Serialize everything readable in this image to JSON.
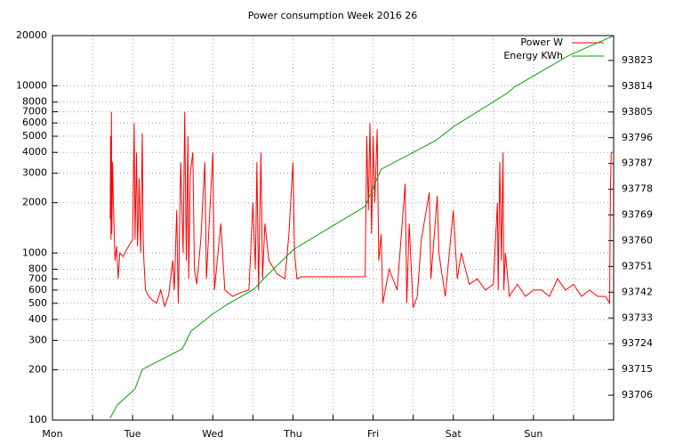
{
  "chart_data": {
    "type": "line",
    "title": "Power consumption Week 2016 26",
    "xlim": [
      0,
      7
    ],
    "xticks": [
      {
        "value": 0,
        "label": "Mon"
      },
      {
        "value": 1,
        "label": "Tue"
      },
      {
        "value": 2,
        "label": "Wed"
      },
      {
        "value": 3,
        "label": "Thu"
      },
      {
        "value": 4,
        "label": "Fri"
      },
      {
        "value": 5,
        "label": "Sat"
      },
      {
        "value": 6,
        "label": "Sun"
      }
    ],
    "xminorticks": [
      0.5,
      1.5,
      2.5,
      3.5,
      4.5,
      5.5,
      6.5
    ],
    "ylim": [
      100,
      20000
    ],
    "ylog": true,
    "yticks": [
      100,
      200,
      300,
      400,
      500,
      600,
      700,
      800,
      1000,
      2000,
      3000,
      4000,
      5000,
      6000,
      7000,
      8000,
      10000,
      20000
    ],
    "y2lim": [
      93697.3,
      93831.7
    ],
    "y2ticks": [
      93706,
      93715,
      93724,
      93733,
      93742,
      93751,
      93760,
      93769,
      93778,
      93787,
      93796,
      93805,
      93814,
      93823
    ],
    "grid": true,
    "legend": "top-right",
    "series": [
      {
        "name": "Power W",
        "color": "#ff0000",
        "x": [
          0.72,
          0.725,
          0.73,
          0.735,
          0.74,
          0.75,
          0.76,
          0.78,
          0.8,
          0.82,
          0.84,
          0.88,
          0.95,
          1.0,
          1.02,
          1.03,
          1.05,
          1.06,
          1.07,
          1.08,
          1.1,
          1.12,
          1.13,
          1.14,
          1.16,
          1.2,
          1.25,
          1.3,
          1.35,
          1.4,
          1.45,
          1.5,
          1.52,
          1.55,
          1.57,
          1.6,
          1.63,
          1.65,
          1.67,
          1.69,
          1.7,
          1.72,
          1.75,
          1.77,
          1.8,
          1.85,
          1.9,
          1.92,
          2.0,
          2.02,
          2.1,
          2.15,
          2.25,
          2.35,
          2.45,
          2.5,
          2.53,
          2.55,
          2.57,
          2.6,
          2.62,
          2.65,
          2.7,
          2.8,
          2.9,
          2.95,
          3.0,
          3.02,
          3.05,
          3.1,
          3.9,
          3.92,
          3.94,
          3.96,
          3.98,
          4.0,
          4.02,
          4.05,
          4.07,
          4.1,
          4.12,
          4.2,
          4.3,
          4.4,
          4.42,
          4.45,
          4.5,
          4.55,
          4.6,
          4.7,
          4.72,
          4.8,
          4.82,
          4.9,
          5.0,
          5.05,
          5.1,
          5.2,
          5.3,
          5.4,
          5.5,
          5.55,
          5.56,
          5.58,
          5.6,
          5.62,
          5.63,
          5.65,
          5.7,
          5.8,
          5.9,
          6.0,
          6.1,
          6.2,
          6.3,
          6.4,
          6.5,
          6.6,
          6.7,
          6.8,
          6.9,
          6.95,
          6.96,
          6.97,
          6.99
        ],
        "values": [
          1600,
          5000,
          1200,
          7000,
          1300,
          3500,
          2000,
          900,
          1100,
          700,
          1000,
          950,
          1100,
          1200,
          6000,
          1200,
          4000,
          1100,
          1500,
          2800,
          1000,
          5200,
          1300,
          900,
          600,
          550,
          520,
          500,
          600,
          480,
          560,
          900,
          600,
          1800,
          500,
          3500,
          1000,
          7000,
          900,
          5000,
          700,
          3000,
          4000,
          800,
          650,
          1200,
          3500,
          700,
          4000,
          600,
          1500,
          600,
          550,
          580,
          600,
          2000,
          800,
          3500,
          600,
          4000,
          700,
          1500,
          900,
          750,
          700,
          1300,
          3500,
          1000,
          700,
          720,
          720,
          5000,
          1800,
          6000,
          1300,
          5000,
          2000,
          5500,
          900,
          1300,
          500,
          800,
          600,
          2600,
          500,
          1500,
          470,
          550,
          1200,
          2300,
          700,
          2200,
          1000,
          550,
          1800,
          700,
          1000,
          650,
          700,
          600,
          650,
          2000,
          600,
          3500,
          900,
          4000,
          600,
          1000,
          550,
          650,
          550,
          600,
          600,
          550,
          700,
          600,
          650,
          550,
          600,
          550,
          550,
          500,
          2400,
          4000,
          4000
        ]
      },
      {
        "name": "Energy KWh",
        "color": "#00a000",
        "axis": "y2",
        "x": [
          0.72,
          0.81,
          1.03,
          1.12,
          1.62,
          1.73,
          2.01,
          2.18,
          2.51,
          2.67,
          3.01,
          3.9,
          4.1,
          4.78,
          5.01,
          5.67,
          5.76,
          6.45,
          6.99
        ],
        "values": [
          93698,
          93702.6,
          93708.2,
          93715,
          93722.2,
          93728.4,
          93734.6,
          93737.7,
          93743,
          93747.7,
          93757,
          93772,
          93785,
          93795,
          93800,
          93811.5,
          93813.7,
          93824.9,
          93831.5
        ]
      }
    ]
  }
}
